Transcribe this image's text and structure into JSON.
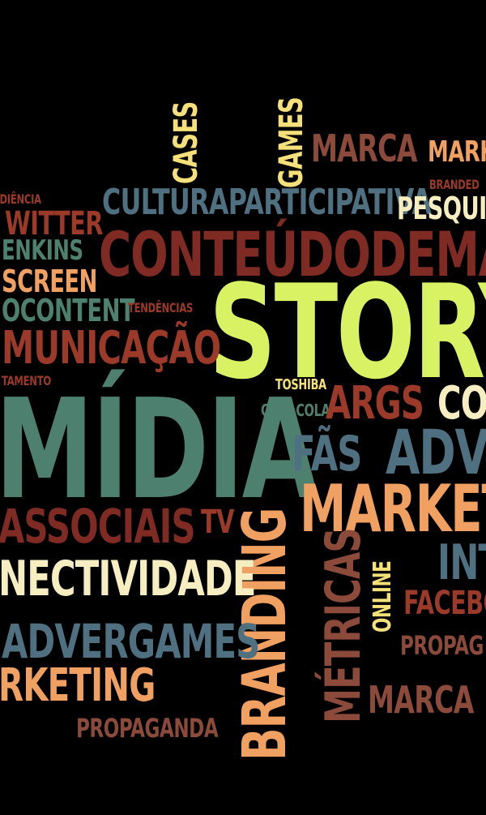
{
  "word_cloud": {
    "background": "#000000",
    "palette": {
      "yellow": "#F5E07A",
      "lime": "#D9F263",
      "rust": "#9C3A2A",
      "brown": "#8B4A3A",
      "orange": "#F0A060",
      "steel": "#4E7080",
      "green": "#4E8070",
      "light": "#F6EEC0",
      "dkred": "#802A24"
    },
    "words": [
      "CASES",
      "GAMES",
      "MARCA",
      "MARK",
      "BRANDED",
      "AUDIÊNCIA",
      "CULTURAPARTICIPATIVA",
      "PESQUI",
      "WITTER",
      "ENKINS",
      "CONTEÚDODEMA",
      "SCREEN",
      "OCONTENT",
      "TENDÊNCIAS",
      "STORY",
      "MUNICAÇÃO",
      "TAMENTO",
      "TOSHIBA",
      "MÍDIA",
      "COCACOLA",
      "ARGS",
      "CO",
      "FÃS",
      "ADV",
      "MARKET",
      "ASSOCIAIS",
      "TV",
      "BRANDING",
      "INT",
      "NECTIVIDADE",
      "MÉTRICAS",
      "ONLINE",
      "FACEBO",
      "ADVERGAMES",
      "PROPAG",
      "RKETING",
      "MARCA",
      "PROPAGANDA"
    ]
  }
}
